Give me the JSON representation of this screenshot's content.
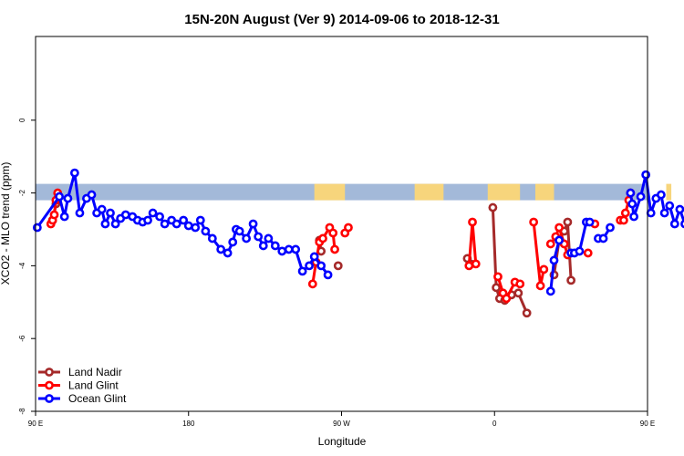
{
  "chart_data": {
    "type": "line",
    "title": "15N-20N August (Ver 9)   2014-09-06 to 2018-12-31",
    "xlabel": "Longitude",
    "ylabel": "XCO2 - MLO trend (ppm)",
    "xlim": [
      90,
      450
    ],
    "ylim": [
      -8,
      2.3
    ],
    "x_ticks": [
      {
        "value": 90,
        "label": "90 E"
      },
      {
        "value": 180,
        "label": "180"
      },
      {
        "value": 270,
        "label": "90 W"
      },
      {
        "value": 360,
        "label": "0"
      },
      {
        "value": 450,
        "label": "90 E"
      },
      {
        "value": 540,
        "label": "180"
      }
    ],
    "y_ticks": [
      {
        "value": 0,
        "label": "0"
      },
      {
        "value": -2,
        "label": "-2"
      },
      {
        "value": -4,
        "label": "-4"
      },
      {
        "value": -6,
        "label": "-6"
      },
      {
        "value": -8,
        "label": "-8"
      }
    ],
    "legend_position": "bottom-left",
    "grid": false,
    "land_mask": {
      "y_range": [
        -2.2,
        -1.75
      ],
      "ocean_color": "#a3b9d9",
      "land_color": "#f7d57c",
      "land_segments": [
        [
          254,
          272
        ],
        [
          313,
          330
        ],
        [
          356,
          375
        ],
        [
          384,
          395
        ],
        [
          461,
          464
        ]
      ]
    },
    "series": [
      {
        "name": "Land Nadir",
        "color": "#a52a2a",
        "segments": [
          [
            [
              100,
              -2.75
            ],
            [
              102,
              -2.3
            ],
            [
              103,
              -2.15
            ]
          ],
          [
            [
              257,
              -3.3
            ],
            [
              258,
              -3.6
            ]
          ],
          [
            [
              268,
              -4.0
            ]
          ],
          [
            [
              344,
              -3.8
            ],
            [
              346,
              -3.95
            ]
          ],
          [
            [
              359,
              -2.4
            ],
            [
              361,
              -4.6
            ],
            [
              363,
              -4.9
            ],
            [
              366,
              -4.95
            ],
            [
              370,
              -4.8
            ],
            [
              374,
              -4.75
            ],
            [
              379,
              -5.3
            ]
          ],
          [
            [
              395,
              -4.25
            ],
            [
              398,
              -3.3
            ],
            [
              401,
              -3.05
            ],
            [
              403,
              -2.8
            ],
            [
              405,
              -4.4
            ]
          ]
        ]
      },
      {
        "name": "Land Glint",
        "color": "#ff0000",
        "segments": [
          [
            [
              99,
              -2.85
            ],
            [
              100,
              -2.75
            ],
            [
              101,
              -2.6
            ],
            [
              102,
              -2.2
            ],
            [
              103,
              -2.0
            ]
          ],
          [
            [
              253,
              -4.5
            ],
            [
              255,
              -3.9
            ],
            [
              257,
              -3.35
            ],
            [
              259,
              -3.25
            ],
            [
              263,
              -2.95
            ],
            [
              265,
              -3.1
            ],
            [
              266,
              -3.55
            ]
          ],
          [
            [
              272,
              -3.1
            ],
            [
              274,
              -2.95
            ]
          ],
          [
            [
              345,
              -4.0
            ],
            [
              347,
              -2.8
            ],
            [
              349,
              -3.95
            ]
          ],
          [
            [
              362,
              -4.3
            ],
            [
              365,
              -4.75
            ],
            [
              367,
              -4.9
            ],
            [
              372,
              -4.45
            ],
            [
              375,
              -4.5
            ]
          ],
          [
            [
              383,
              -2.8
            ],
            [
              387,
              -4.55
            ],
            [
              389,
              -4.1
            ]
          ],
          [
            [
              393,
              -3.4
            ],
            [
              396,
              -3.2
            ],
            [
              398,
              -2.95
            ],
            [
              401,
              -3.4
            ],
            [
              403,
              -3.7
            ]
          ],
          [
            [
              415,
              -3.65
            ]
          ],
          [
            [
              419,
              -2.85
            ]
          ],
          [
            [
              434,
              -2.75
            ],
            [
              436,
              -2.75
            ],
            [
              437,
              -2.55
            ],
            [
              439,
              -2.2
            ],
            [
              440,
              -2.0
            ]
          ]
        ]
      },
      {
        "name": "Ocean Glint",
        "color": "#0000ff",
        "segments": [
          [
            [
              91,
              -2.95
            ],
            [
              104,
              -2.1
            ],
            [
              107,
              -2.65
            ],
            [
              109,
              -2.15
            ],
            [
              113,
              -1.45
            ],
            [
              116,
              -2.55
            ],
            [
              120,
              -2.15
            ],
            [
              123,
              -2.05
            ],
            [
              126,
              -2.55
            ],
            [
              129,
              -2.45
            ],
            [
              131,
              -2.85
            ],
            [
              134,
              -2.55
            ],
            [
              137,
              -2.85
            ],
            [
              140,
              -2.7
            ],
            [
              143,
              -2.6
            ],
            [
              147,
              -2.65
            ],
            [
              150,
              -2.75
            ],
            [
              153,
              -2.8
            ],
            [
              156,
              -2.75
            ],
            [
              159,
              -2.55
            ],
            [
              163,
              -2.65
            ],
            [
              166,
              -2.85
            ],
            [
              170,
              -2.75
            ],
            [
              173,
              -2.85
            ],
            [
              177,
              -2.75
            ],
            [
              180,
              -2.9
            ],
            [
              184,
              -2.95
            ],
            [
              187,
              -2.75
            ],
            [
              190,
              -3.05
            ],
            [
              194,
              -3.25
            ],
            [
              199,
              -3.55
            ],
            [
              203,
              -3.65
            ],
            [
              206,
              -3.35
            ],
            [
              208,
              -3.0
            ],
            [
              210,
              -3.05
            ],
            [
              214,
              -3.25
            ],
            [
              218,
              -2.85
            ],
            [
              221,
              -3.2
            ],
            [
              224,
              -3.45
            ],
            [
              227,
              -3.25
            ],
            [
              231,
              -3.45
            ],
            [
              235,
              -3.6
            ],
            [
              239,
              -3.55
            ],
            [
              243,
              -3.55
            ],
            [
              247,
              -4.15
            ],
            [
              251,
              -4.0
            ],
            [
              254,
              -3.75
            ],
            [
              258,
              -4.0
            ],
            [
              262,
              -4.25
            ]
          ],
          [
            [
              393,
              -4.7
            ],
            [
              395,
              -3.85
            ],
            [
              398,
              -3.3
            ]
          ],
          [
            [
              405,
              -3.65
            ],
            [
              407,
              -3.65
            ],
            [
              410,
              -3.6
            ],
            [
              414,
              -2.8
            ],
            [
              416,
              -2.8
            ]
          ],
          [
            [
              421,
              -3.25
            ],
            [
              424,
              -3.25
            ],
            [
              428,
              -2.95
            ]
          ],
          [
            [
              440,
              -2.0
            ],
            [
              441,
              -2.3
            ],
            [
              442,
              -2.65
            ],
            [
              446,
              -2.1
            ],
            [
              449,
              -1.5
            ],
            [
              452,
              -2.55
            ],
            [
              455,
              -2.15
            ],
            [
              458,
              -2.05
            ],
            [
              460,
              -2.55
            ],
            [
              463,
              -2.35
            ],
            [
              466,
              -2.85
            ],
            [
              469,
              -2.45
            ],
            [
              472,
              -2.85
            ],
            [
              476,
              -2.65
            ],
            [
              479,
              -2.55
            ],
            [
              483,
              -2.6
            ]
          ]
        ]
      }
    ]
  }
}
